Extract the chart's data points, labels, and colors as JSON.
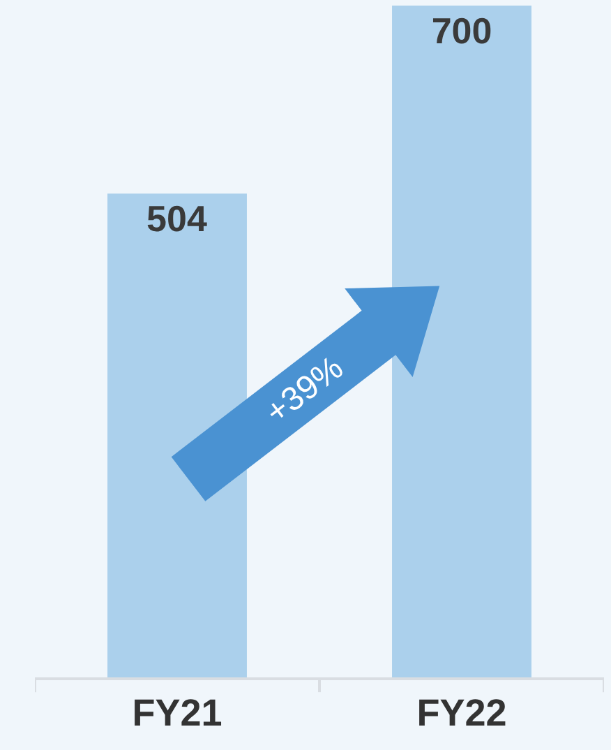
{
  "chart_data": {
    "type": "bar",
    "categories": [
      "FY21",
      "FY22"
    ],
    "values": [
      504,
      700
    ],
    "color": "#abd0ec",
    "ylim": [
      0,
      700
    ],
    "data_labels": true,
    "tick_labels": "x",
    "annotations": [
      "+39%"
    ]
  }
}
